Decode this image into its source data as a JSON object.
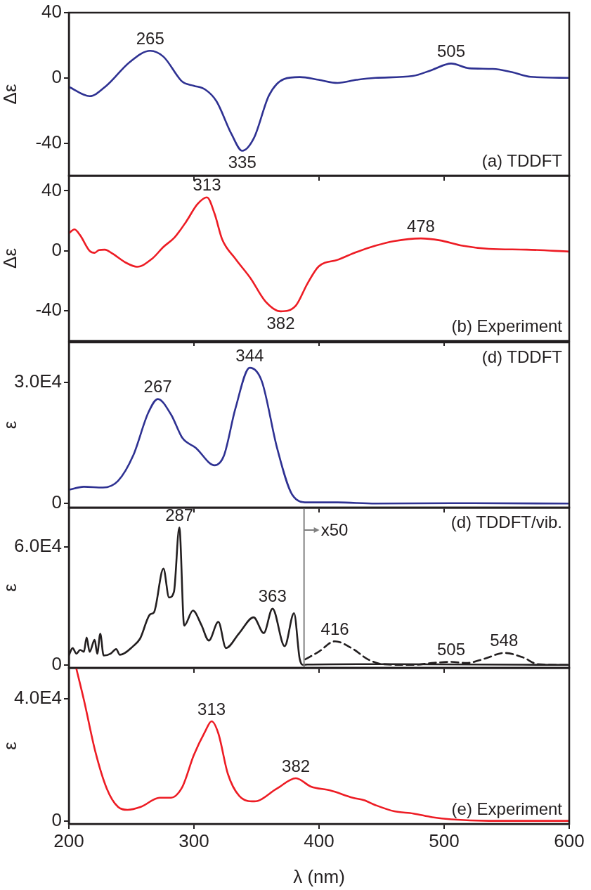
{
  "chart_data": [
    {
      "type": "line",
      "ylabel": "Δε",
      "xlim": [
        200,
        600
      ],
      "xticks": [
        200,
        300,
        400,
        500,
        600
      ],
      "ylim": [
        -60,
        40
      ],
      "yticks": [
        -40,
        0,
        40
      ],
      "tick_labels": "y",
      "marker": "none",
      "series": [
        {
          "color": "#2e3192",
          "x": [
            200,
            216.6,
            230,
            248.4,
            265,
            275.6,
            290.8,
            299.8,
            308.9,
            318,
            330,
            338.6,
            348,
            360,
            372,
            384.6,
            399.7,
            414.8,
            430,
            445,
            475,
            490,
            505.6,
            520,
            538.9,
            554,
            569,
            600
          ],
          "values": [
            -5.5,
            -11.2,
            -4.8,
            9.5,
            16.6,
            13,
            -2.4,
            -4.8,
            -7.1,
            -14.3,
            -34.4,
            -44.7,
            -36.8,
            -10.7,
            -0.7,
            0.5,
            -1.2,
            -3.1,
            -1.2,
            0,
            1.2,
            4.8,
            8.8,
            5.9,
            5.5,
            3.6,
            0.7,
            0
          ]
        }
      ],
      "annotations": [
        {
          "text": "265",
          "x": 265,
          "y": 16.6
        },
        {
          "text": "335",
          "x": 338.6,
          "y": -44.7
        },
        {
          "text": "505",
          "x": 505.6,
          "y": 8.8
        },
        "(a) TDDFT"
      ]
    },
    {
      "type": "line",
      "ylabel": "Δε",
      "xlim": [
        200,
        600
      ],
      "xticks": [
        200,
        300,
        400,
        500,
        600
      ],
      "ylim": [
        -60,
        50
      ],
      "yticks": [
        -40,
        0,
        40
      ],
      "tick_labels": "y",
      "marker": "none",
      "series": [
        {
          "color": "#ed1c24",
          "x": [
            200,
            204.5,
            209,
            216.6,
            220.6,
            224,
            228.7,
            234.8,
            245.4,
            254.5,
            266.6,
            275.6,
            284.7,
            293.8,
            302.9,
            310.4,
            316.5,
            322.5,
            333.1,
            345.2,
            357.3,
            369.4,
            381.5,
            390.6,
            399.7,
            414.8,
            430,
            445,
            460,
            481.4,
            496.5,
            514.7,
            535.9,
            566,
            600
          ],
          "values": [
            11.7,
            14.3,
            10.4,
            0,
            -1.3,
            0.5,
            0.8,
            -1.8,
            -7.8,
            -10.6,
            -5.2,
            2.6,
            9.1,
            19.5,
            31.2,
            35.6,
            24.7,
            7.8,
            -5.2,
            -18.2,
            -33.8,
            -40.3,
            -36.4,
            -22,
            -10.4,
            -6,
            -0.8,
            3.4,
            6.5,
            8.3,
            7,
            3.4,
            1.3,
            0.8,
            -0.5
          ]
        }
      ],
      "annotations": [
        {
          "text": "313",
          "x": 310.4,
          "y": 35.6
        },
        {
          "text": "382",
          "x": 369.4,
          "y": -40.3
        },
        {
          "text": "478",
          "x": 481.4,
          "y": 8.3
        },
        "(b) Experiment"
      ]
    },
    {
      "type": "line",
      "ylabel": "ε",
      "xlim": [
        200,
        600
      ],
      "xticks": [
        200,
        300,
        400,
        500,
        600
      ],
      "ylim": [
        -1000,
        40000
      ],
      "yticks": [
        0,
        {
          "value": 30000,
          "label": "3.0E4"
        }
      ],
      "tick_labels": "y",
      "marker": "none",
      "series": [
        {
          "color": "#2e3192",
          "x": [
            200,
            212,
            227.2,
            239.3,
            251.4,
            263.5,
            271.1,
            281.7,
            290.8,
            301.4,
            316.5,
            324,
            333.1,
            344.6,
            354.3,
            366.4,
            378.5,
            390.6,
            414.8,
            445,
            505.6,
            600
          ],
          "values": [
            3390,
            4160,
            3970,
            5610,
            11900,
            22550,
            25940,
            22070,
            16260,
            13840,
            9490,
            11900,
            23520,
            33690,
            30300,
            13840,
            2230,
            290,
            290,
            0,
            100,
            0
          ]
        }
      ],
      "annotations": [
        {
          "text": "267",
          "x": 271.1,
          "y": 25940
        },
        {
          "text": "344",
          "x": 344.6,
          "y": 33690
        },
        "(d) TDDFT"
      ]
    },
    {
      "type": "line",
      "ylabel": "ε",
      "xlim": [
        200,
        600
      ],
      "xticks": [
        200,
        300,
        400,
        500,
        600
      ],
      "ylim": [
        -1500,
        80000
      ],
      "yticks": [
        0,
        {
          "value": 60000,
          "label": "6.0E4"
        }
      ],
      "tick_labels": "y",
      "marker": "none",
      "series": [
        {
          "color": "#231f20",
          "x": [
            200,
            203,
            206,
            209,
            212,
            214.2,
            216.6,
            220.6,
            222.7,
            225.1,
            227.8,
            233.3,
            237.8,
            240.8,
            251.4,
            256.9,
            265,
            268,
            275.6,
            280.1,
            284,
            288.3,
            292.2,
            299.2,
            305.9,
            311.9,
            319.5,
            325.6,
            336.2,
            347.7,
            355.8,
            362.8,
            372.5,
            380,
            384.6,
            387.6,
            390.6,
            445,
            600
          ],
          "values": [
            4760,
            8570,
            5710,
            7620,
            6670,
            13900,
            6670,
            12760,
            5710,
            15810,
            4760,
            5710,
            8000,
            5140,
            9530,
            13330,
            25720,
            26670,
            48960,
            34290,
            37150,
            69910,
            20000,
            27620,
            20380,
            12380,
            21910,
            8570,
            16190,
            24190,
            16190,
            28580,
            9530,
            26290,
            2860,
            0,
            190,
            380,
            0
          ]
        },
        {
          "color": "#231f20",
          "line_style": "dashed",
          "x": [
            389,
            399.7,
            412.7,
            426.9,
            439,
            451,
            475,
            490,
            505.6,
            517.7,
            532.8,
            547.9,
            563,
            575,
            600
          ],
          "values": [
            2860,
            6670,
            12000,
            8190,
            2860,
            380,
            0,
            950,
            1520,
            950,
            3240,
            6100,
            3810,
            380,
            0
          ]
        }
      ],
      "ref_lines": [
        {
          "axis": "x",
          "value": 388,
          "label": "x50",
          "color": "#808080"
        }
      ],
      "annotations": [
        {
          "text": "287",
          "x": 288.3,
          "y": 69910
        },
        {
          "text": "363",
          "x": 362.8,
          "y": 28580
        },
        {
          "text": "416",
          "x": 412.7,
          "y": 12000
        },
        {
          "text": "505",
          "x": 505.6,
          "y": 1520
        },
        {
          "text": "548",
          "x": 547.9,
          "y": 6100
        },
        "(d) TDDFT/vib."
      ]
    },
    {
      "type": "line",
      "ylabel": "ε",
      "xlabel": "λ (nm)",
      "xlim": [
        200,
        600
      ],
      "xticks": [
        200,
        300,
        400,
        500,
        600
      ],
      "ylim": [
        -1000,
        50000
      ],
      "yticks": [
        0,
        {
          "value": 40000,
          "label": "4.0E4"
        }
      ],
      "marker": "none",
      "series": [
        {
          "color": "#ed1c24",
          "x": [
            206,
            212.1,
            221.2,
            230.3,
            239.3,
            246.9,
            257.5,
            272.6,
            281.7,
            290.8,
            299.8,
            308.9,
            314.1,
            319.5,
            327.1,
            336.2,
            348.3,
            366.4,
            381.5,
            393.6,
            408.8,
            426.9,
            436,
            445,
            460.2,
            475.3,
            490.5,
            505.6,
            535.9,
            600
          ],
          "values": [
            49720,
            39390,
            22580,
            10570,
            4560,
            3600,
            4560,
            7570,
            7570,
            11170,
            21380,
            29180,
            32550,
            28580,
            15370,
            8170,
            6370,
            10570,
            13930,
            11170,
            9970,
            7570,
            6730,
            5160,
            3120,
            2400,
            1200,
            480,
            0,
            0
          ]
        }
      ],
      "annotations": [
        {
          "text": "313",
          "x": 314.1,
          "y": 32550
        },
        {
          "text": "382",
          "x": 381.5,
          "y": 13930
        },
        "(e) Experiment"
      ]
    }
  ]
}
